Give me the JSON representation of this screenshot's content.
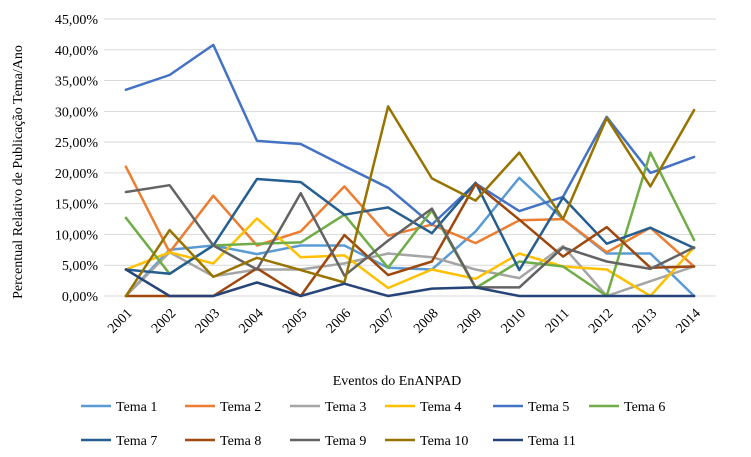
{
  "chart_data": {
    "type": "line",
    "xlabel": "Eventos do EnANPAD",
    "ylabel": "Percentual Relativo de Publicação Tema/Ano",
    "ylim": [
      0,
      45
    ],
    "ytick_step": 5,
    "y_tick_labels": [
      "0,00%",
      "5,00%",
      "10,00%",
      "15,00%",
      "20,00%",
      "25,00%",
      "30,00%",
      "35,00%",
      "40,00%",
      "45,00%"
    ],
    "categories": [
      "2001",
      "2002",
      "2003",
      "2004",
      "2005",
      "2006",
      "2007",
      "2008",
      "2009",
      "2010",
      "2011",
      "2012",
      "2013",
      "2014"
    ],
    "grid": "horizontal",
    "legend_position": "bottom",
    "series": [
      {
        "name": "Tema 1",
        "color": "#5B9BD5",
        "values": [
          0,
          7.5,
          8.2,
          6.8,
          8.2,
          8.2,
          4.6,
          4.3,
          10.5,
          19.2,
          12.5,
          6.9,
          6.9,
          0
        ]
      },
      {
        "name": "Tema 2",
        "color": "#ED7D31",
        "values": [
          21,
          7.1,
          16.3,
          8.2,
          10.5,
          17.8,
          9.8,
          11.6,
          8.6,
          12.3,
          12.5,
          7.1,
          11.1,
          4.8
        ]
      },
      {
        "name": "Tema 3",
        "color": "#A5A5A5",
        "values": [
          0,
          7.1,
          3.2,
          4.3,
          4.3,
          5.3,
          6.9,
          6.3,
          4.3,
          2.9,
          8.1,
          0,
          2.4,
          4.8
        ]
      },
      {
        "name": "Tema 4",
        "color": "#FFC000",
        "values": [
          4.3,
          7.1,
          5.3,
          12.6,
          6.3,
          6.6,
          1.3,
          4.3,
          2.8,
          6.9,
          4.8,
          4.3,
          0,
          7.9
        ]
      },
      {
        "name": "Tema 5",
        "color": "#4472C4",
        "values": [
          33.5,
          35.9,
          40.8,
          25.2,
          24.7,
          21.1,
          17.6,
          11.6,
          18.3,
          13.8,
          16.1,
          29.1,
          20,
          22.6
        ]
      },
      {
        "name": "Tema 6",
        "color": "#70AD47",
        "values": [
          12.7,
          3.6,
          8.2,
          8.5,
          8.7,
          13.2,
          4.6,
          13.9,
          1.3,
          5.6,
          4.8,
          0,
          23.3,
          9.1
        ]
      },
      {
        "name": "Tema 7",
        "color": "#255E91",
        "values": [
          4.3,
          3.6,
          8.2,
          19,
          18.5,
          13.2,
          14.4,
          10.2,
          18.4,
          4.2,
          16,
          8.5,
          11.1,
          7.8
        ]
      },
      {
        "name": "Tema 8",
        "color": "#9E480E",
        "values": [
          0,
          0,
          0,
          4.5,
          0,
          9.9,
          3.4,
          5.6,
          18.2,
          12.4,
          6.4,
          11.2,
          4.6,
          4.8
        ]
      },
      {
        "name": "Tema 9",
        "color": "#636363",
        "values": [
          16.9,
          18,
          8.2,
          4.3,
          16.7,
          3.3,
          9,
          14.2,
          1.4,
          1.4,
          7.9,
          5.6,
          4.4,
          7.9
        ]
      },
      {
        "name": "Tema 10",
        "color": "#997300",
        "values": [
          0,
          10.7,
          3.1,
          6.2,
          4.2,
          2.2,
          30.8,
          19.1,
          15.5,
          23.3,
          12.5,
          28.9,
          17.8,
          30.2
        ]
      },
      {
        "name": "Tema 11",
        "color": "#264478",
        "values": [
          4.3,
          0,
          0,
          2.2,
          0,
          2,
          0,
          1.2,
          1.4,
          0,
          0,
          0,
          0,
          0
        ]
      }
    ]
  }
}
